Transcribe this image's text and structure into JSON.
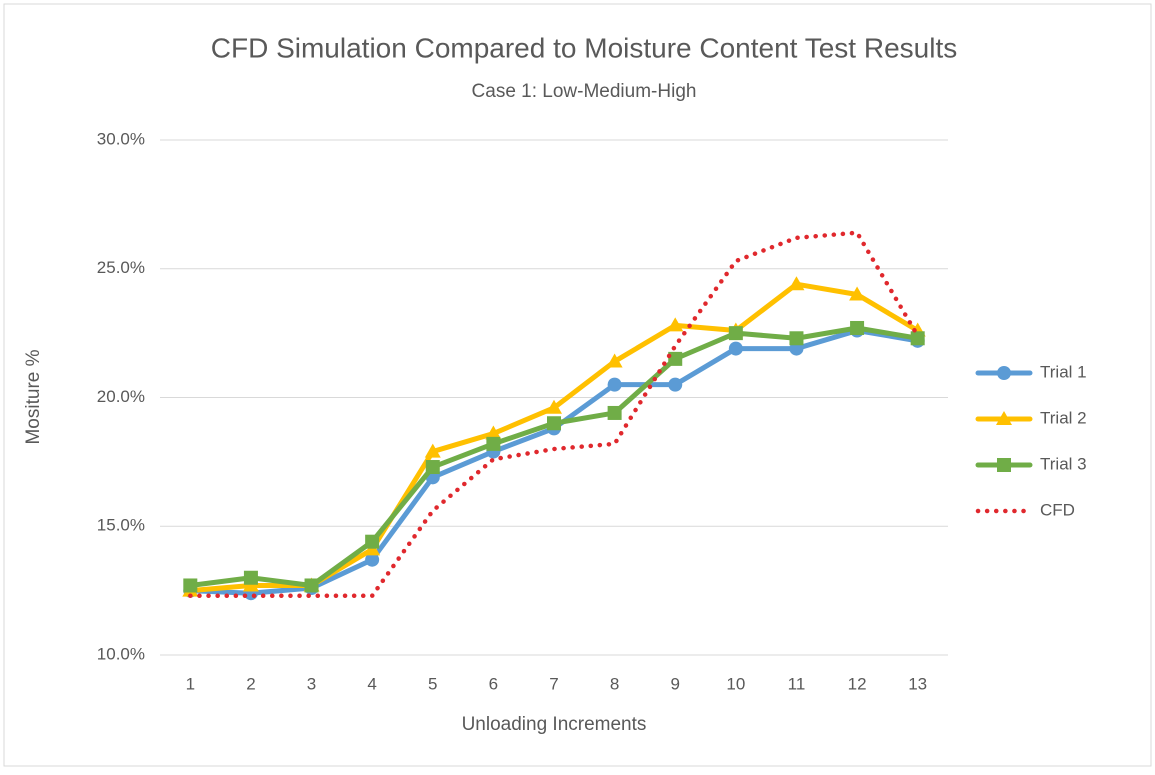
{
  "chart_data": {
    "type": "line",
    "title": "CFD Simulation Compared to Moisture Content Test Results",
    "subtitle": "Case 1: Low-Medium-High",
    "x_label": "Unloading Increments",
    "y_label": "Mositure %",
    "categories": [
      "1",
      "2",
      "3",
      "4",
      "5",
      "6",
      "7",
      "8",
      "9",
      "10",
      "11",
      "12",
      "13"
    ],
    "series": [
      {
        "name": "Trial 1",
        "color": "#5b9bd5",
        "marker": "circle",
        "dash": false,
        "values": [
          12.5,
          12.4,
          12.6,
          13.7,
          16.9,
          17.9,
          18.8,
          20.5,
          20.5,
          21.9,
          21.9,
          22.6,
          22.2
        ]
      },
      {
        "name": "Trial 2",
        "color": "#ffc000",
        "marker": "triangle",
        "dash": false,
        "values": [
          12.5,
          12.7,
          12.7,
          14.1,
          17.9,
          18.6,
          19.6,
          21.4,
          22.8,
          22.6,
          24.4,
          24.0,
          22.6
        ]
      },
      {
        "name": "Trial 3",
        "color": "#70ad47",
        "marker": "square",
        "dash": false,
        "values": [
          12.7,
          13.0,
          12.7,
          14.4,
          17.3,
          18.2,
          19.0,
          19.4,
          21.5,
          22.5,
          22.3,
          22.7,
          22.3
        ]
      },
      {
        "name": "CFD",
        "color": "#e0282d",
        "marker": "none",
        "dash": true,
        "values": [
          12.3,
          12.3,
          12.3,
          12.3,
          15.6,
          17.6,
          18.0,
          18.2,
          22.0,
          25.3,
          26.2,
          26.4,
          22.4
        ]
      }
    ],
    "ylim": [
      10,
      30
    ],
    "yticks": [
      {
        "value": 10,
        "label": "10.0%"
      },
      {
        "value": 15,
        "label": "15.0%"
      },
      {
        "value": 20,
        "label": "20.0%"
      },
      {
        "value": 25,
        "label": "25.0%"
      },
      {
        "value": 30,
        "label": "30.0%"
      }
    ],
    "grid": true,
    "legend": "right"
  }
}
